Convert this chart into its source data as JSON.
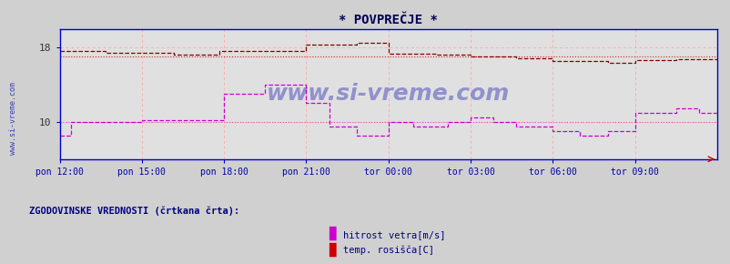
{
  "title": "* POVPREČJE *",
  "bg_color": "#d8d8d8",
  "plot_bg_color": "#e8e8e8",
  "grid_color": "#ffaaaa",
  "axis_color": "#0000cc",
  "text_color": "#000080",
  "watermark": "www.si-vreme.com",
  "xlabel_color": "#0000aa",
  "ylabel_ticks": [
    10,
    18
  ],
  "xlim": [
    0,
    288
  ],
  "ylim": [
    6,
    20
  ],
  "xtick_labels": [
    "pon 12:00",
    "pon 15:00",
    "pon 18:00",
    "pon 21:00",
    "tor 00:00",
    "tor 03:00",
    "tor 06:00",
    "tor 09:00"
  ],
  "xtick_positions": [
    0,
    36,
    72,
    108,
    144,
    180,
    216,
    252
  ],
  "legend_text1": "hitrost vetra[m/s]",
  "legend_text2": "temp. rosišča[C]",
  "legend_color1": "#cc00cc",
  "legend_color2": "#cc0000",
  "footer_text": "ZGODOVINSKE VREDNOSTI (črtkana črta):",
  "title_color": "#000066",
  "title_fontsize": 11,
  "font_family": "monospace"
}
